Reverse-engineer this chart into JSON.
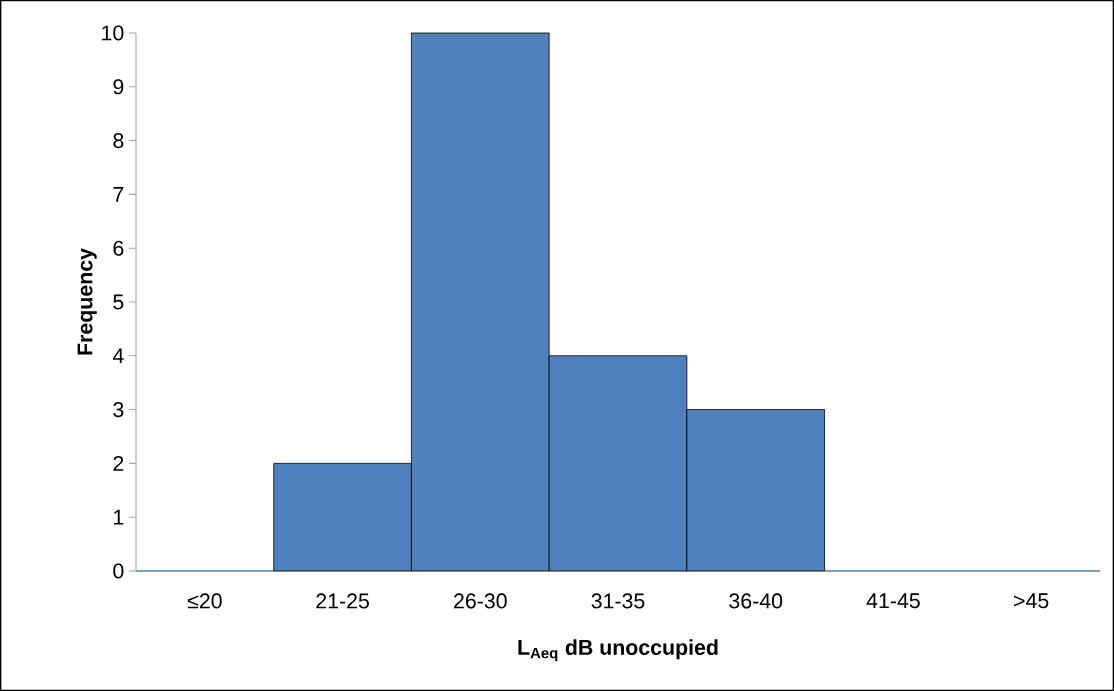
{
  "chart_data": {
    "type": "bar",
    "xlabel": "L$_{Aeq}$ dB unoccupied",
    "ylabel": "Frequency",
    "categories": [
      "≤20",
      "21-25",
      "26-30",
      "31-35",
      "36-40",
      "41-45",
      ">45"
    ],
    "values": [
      0,
      2,
      10,
      4,
      3,
      0,
      0
    ],
    "color": "#4f81bd",
    "ylim": [
      0,
      10
    ],
    "yticks": [
      0,
      1,
      2,
      3,
      4,
      5,
      6,
      7,
      8,
      9,
      10
    ]
  }
}
